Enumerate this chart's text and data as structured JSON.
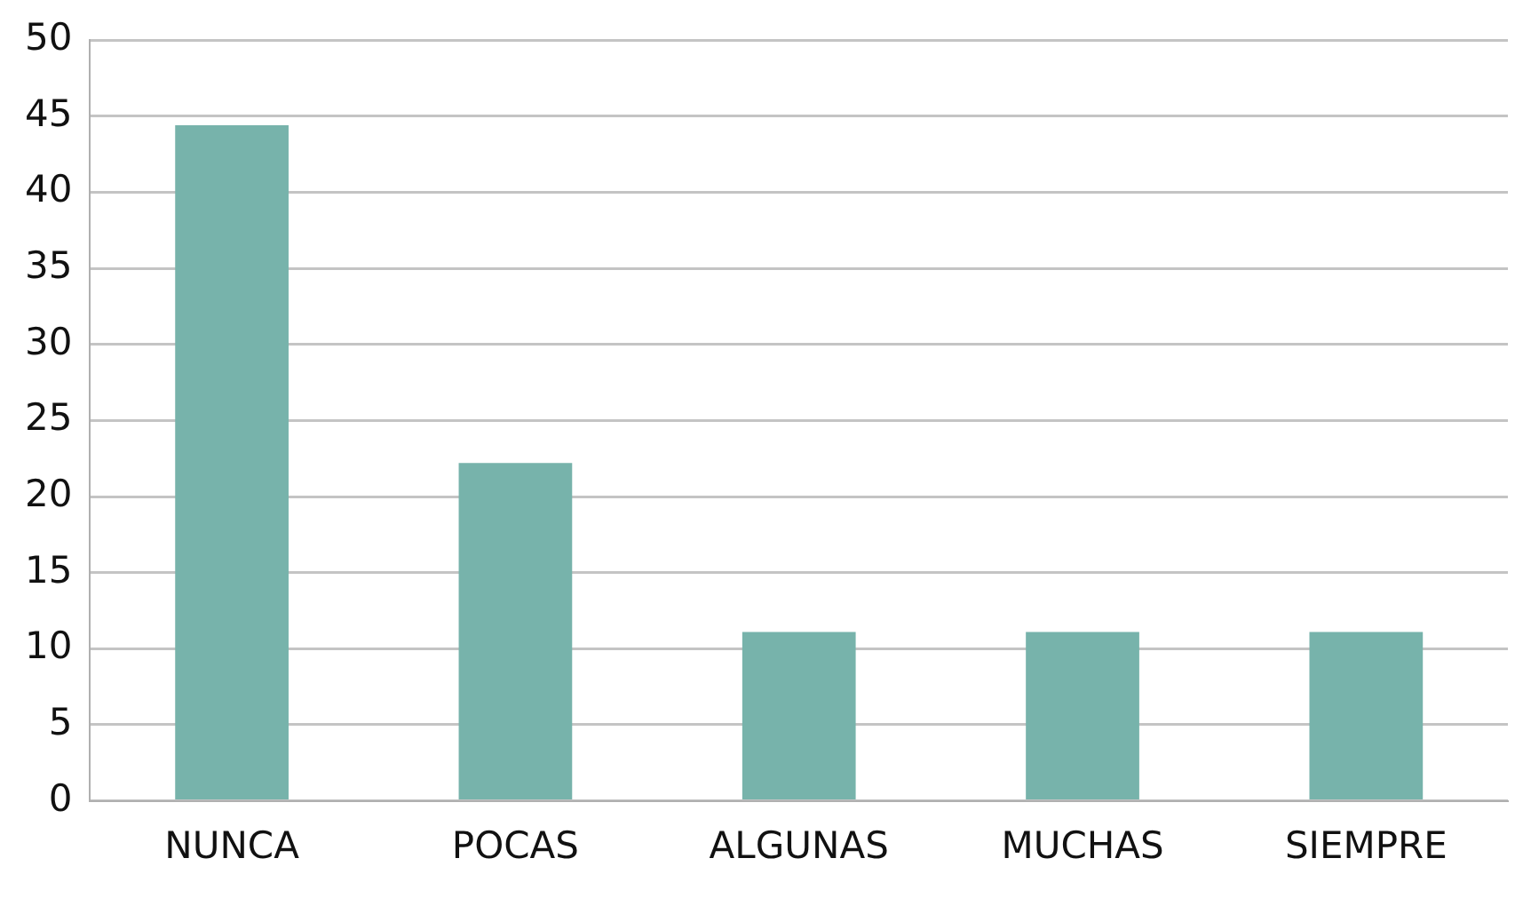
{
  "chart_data": {
    "type": "bar",
    "categories": [
      "NUNCA",
      "POCAS",
      "ALGUNAS",
      "MUCHAS",
      "SIEMPRE"
    ],
    "values": [
      44.4,
      22.2,
      11.1,
      11.1,
      11.1
    ],
    "color": "#77b3ab",
    "ylim": [
      0,
      50
    ],
    "yticks": [
      0,
      5,
      10,
      15,
      20,
      25,
      30,
      35,
      40,
      45,
      50
    ],
    "grid": "y"
  }
}
